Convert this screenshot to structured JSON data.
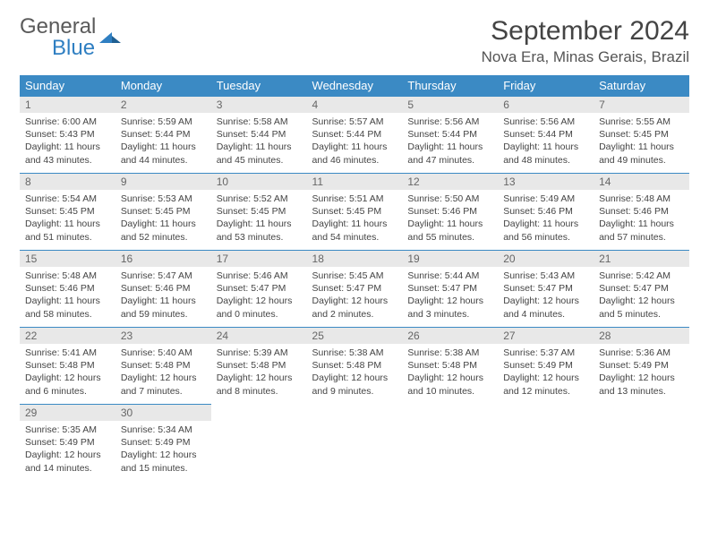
{
  "logo": {
    "text1": "General",
    "text2": "Blue"
  },
  "title": "September 2024",
  "location": "Nova Era, Minas Gerais, Brazil",
  "colors": {
    "header_bg": "#3b8ac4",
    "header_text": "#ffffff",
    "daynum_bg": "#e8e8e8",
    "row_border": "#3b8ac4",
    "logo_gray": "#5a5a5a",
    "logo_blue": "#2f7fc2"
  },
  "weekdays": [
    "Sunday",
    "Monday",
    "Tuesday",
    "Wednesday",
    "Thursday",
    "Friday",
    "Saturday"
  ],
  "days": [
    {
      "n": 1,
      "sr": "6:00 AM",
      "ss": "5:43 PM",
      "dl": "11 hours and 43 minutes."
    },
    {
      "n": 2,
      "sr": "5:59 AM",
      "ss": "5:44 PM",
      "dl": "11 hours and 44 minutes."
    },
    {
      "n": 3,
      "sr": "5:58 AM",
      "ss": "5:44 PM",
      "dl": "11 hours and 45 minutes."
    },
    {
      "n": 4,
      "sr": "5:57 AM",
      "ss": "5:44 PM",
      "dl": "11 hours and 46 minutes."
    },
    {
      "n": 5,
      "sr": "5:56 AM",
      "ss": "5:44 PM",
      "dl": "11 hours and 47 minutes."
    },
    {
      "n": 6,
      "sr": "5:56 AM",
      "ss": "5:44 PM",
      "dl": "11 hours and 48 minutes."
    },
    {
      "n": 7,
      "sr": "5:55 AM",
      "ss": "5:45 PM",
      "dl": "11 hours and 49 minutes."
    },
    {
      "n": 8,
      "sr": "5:54 AM",
      "ss": "5:45 PM",
      "dl": "11 hours and 51 minutes."
    },
    {
      "n": 9,
      "sr": "5:53 AM",
      "ss": "5:45 PM",
      "dl": "11 hours and 52 minutes."
    },
    {
      "n": 10,
      "sr": "5:52 AM",
      "ss": "5:45 PM",
      "dl": "11 hours and 53 minutes."
    },
    {
      "n": 11,
      "sr": "5:51 AM",
      "ss": "5:45 PM",
      "dl": "11 hours and 54 minutes."
    },
    {
      "n": 12,
      "sr": "5:50 AM",
      "ss": "5:46 PM",
      "dl": "11 hours and 55 minutes."
    },
    {
      "n": 13,
      "sr": "5:49 AM",
      "ss": "5:46 PM",
      "dl": "11 hours and 56 minutes."
    },
    {
      "n": 14,
      "sr": "5:48 AM",
      "ss": "5:46 PM",
      "dl": "11 hours and 57 minutes."
    },
    {
      "n": 15,
      "sr": "5:48 AM",
      "ss": "5:46 PM",
      "dl": "11 hours and 58 minutes."
    },
    {
      "n": 16,
      "sr": "5:47 AM",
      "ss": "5:46 PM",
      "dl": "11 hours and 59 minutes."
    },
    {
      "n": 17,
      "sr": "5:46 AM",
      "ss": "5:47 PM",
      "dl": "12 hours and 0 minutes."
    },
    {
      "n": 18,
      "sr": "5:45 AM",
      "ss": "5:47 PM",
      "dl": "12 hours and 2 minutes."
    },
    {
      "n": 19,
      "sr": "5:44 AM",
      "ss": "5:47 PM",
      "dl": "12 hours and 3 minutes."
    },
    {
      "n": 20,
      "sr": "5:43 AM",
      "ss": "5:47 PM",
      "dl": "12 hours and 4 minutes."
    },
    {
      "n": 21,
      "sr": "5:42 AM",
      "ss": "5:47 PM",
      "dl": "12 hours and 5 minutes."
    },
    {
      "n": 22,
      "sr": "5:41 AM",
      "ss": "5:48 PM",
      "dl": "12 hours and 6 minutes."
    },
    {
      "n": 23,
      "sr": "5:40 AM",
      "ss": "5:48 PM",
      "dl": "12 hours and 7 minutes."
    },
    {
      "n": 24,
      "sr": "5:39 AM",
      "ss": "5:48 PM",
      "dl": "12 hours and 8 minutes."
    },
    {
      "n": 25,
      "sr": "5:38 AM",
      "ss": "5:48 PM",
      "dl": "12 hours and 9 minutes."
    },
    {
      "n": 26,
      "sr": "5:38 AM",
      "ss": "5:48 PM",
      "dl": "12 hours and 10 minutes."
    },
    {
      "n": 27,
      "sr": "5:37 AM",
      "ss": "5:49 PM",
      "dl": "12 hours and 12 minutes."
    },
    {
      "n": 28,
      "sr": "5:36 AM",
      "ss": "5:49 PM",
      "dl": "12 hours and 13 minutes."
    },
    {
      "n": 29,
      "sr": "5:35 AM",
      "ss": "5:49 PM",
      "dl": "12 hours and 14 minutes."
    },
    {
      "n": 30,
      "sr": "5:34 AM",
      "ss": "5:49 PM",
      "dl": "12 hours and 15 minutes."
    }
  ],
  "labels": {
    "sunrise": "Sunrise: ",
    "sunset": "Sunset: ",
    "daylight": "Daylight: "
  }
}
